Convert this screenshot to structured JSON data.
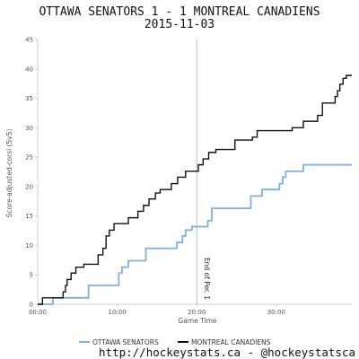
{
  "header": {
    "title": "OTTAWA SENATORS 1 - 1 MONTREAL CANADIENS",
    "date": "2015-11-03"
  },
  "footer": {
    "credit": "http://hockeystats.ca - @hockeystatsca"
  },
  "colors": {
    "ottawa": "#7fb0e0",
    "montreal": "#111111",
    "period_line": "#bdbdbd",
    "axis": "#d0d0d0"
  },
  "chart_data": {
    "type": "line",
    "xlabel": "Game Time",
    "ylabel": "Score-adjusted-corsi (5v5)",
    "x_unit": "minutes",
    "xlim": [
      0,
      39.5
    ],
    "ylim": [
      0,
      45
    ],
    "x_ticks": [
      "00:00",
      "10:00",
      "20:00",
      "30:00"
    ],
    "y_ticks": [
      "0",
      "5",
      "10",
      "15",
      "20",
      "25",
      "30",
      "35",
      "40",
      "45"
    ],
    "annotations": [
      {
        "x": 20,
        "text": "End of Per. 1"
      }
    ],
    "legend_position": "bottom",
    "series": [
      {
        "name": "OTTAWA SENATORS",
        "color": "#7fb0e0",
        "points": [
          [
            0,
            0
          ],
          [
            1.9,
            0
          ],
          [
            1.9,
            1.1
          ],
          [
            6.4,
            1.1
          ],
          [
            6.4,
            3.2
          ],
          [
            10.2,
            3.2
          ],
          [
            10.2,
            5.3
          ],
          [
            10.6,
            5.3
          ],
          [
            10.6,
            6.3
          ],
          [
            11.4,
            6.3
          ],
          [
            11.4,
            7.4
          ],
          [
            13.6,
            7.4
          ],
          [
            13.6,
            9.5
          ],
          [
            17.5,
            9.5
          ],
          [
            17.5,
            10.5
          ],
          [
            18.2,
            10.5
          ],
          [
            18.2,
            11.6
          ],
          [
            18.6,
            11.6
          ],
          [
            18.6,
            12.6
          ],
          [
            19.4,
            12.6
          ],
          [
            19.4,
            13.2
          ],
          [
            21.4,
            13.2
          ],
          [
            21.4,
            14.2
          ],
          [
            21.9,
            14.2
          ],
          [
            21.9,
            16.3
          ],
          [
            26.8,
            16.3
          ],
          [
            26.8,
            18.4
          ],
          [
            28.2,
            18.4
          ],
          [
            28.2,
            19.5
          ],
          [
            30.4,
            19.5
          ],
          [
            30.4,
            20.5
          ],
          [
            30.8,
            20.5
          ],
          [
            30.8,
            21.6
          ],
          [
            31.2,
            21.6
          ],
          [
            31.2,
            22.6
          ],
          [
            33.4,
            22.6
          ],
          [
            33.4,
            23.7
          ],
          [
            39.5,
            23.7
          ]
        ]
      },
      {
        "name": "MONTREAL CANADIENS",
        "color": "#111111",
        "points": [
          [
            0,
            0
          ],
          [
            0.6,
            0
          ],
          [
            0.6,
            1.1
          ],
          [
            3.2,
            1.1
          ],
          [
            3.2,
            2.1
          ],
          [
            3.5,
            2.1
          ],
          [
            3.5,
            3.2
          ],
          [
            3.7,
            3.2
          ],
          [
            3.7,
            4.2
          ],
          [
            4.2,
            4.2
          ],
          [
            4.2,
            5.3
          ],
          [
            4.8,
            5.3
          ],
          [
            4.8,
            6.3
          ],
          [
            5.8,
            6.3
          ],
          [
            5.8,
            6.8
          ],
          [
            7.6,
            6.8
          ],
          [
            7.6,
            8.4
          ],
          [
            8.2,
            8.4
          ],
          [
            8.2,
            9.5
          ],
          [
            8.6,
            9.5
          ],
          [
            8.6,
            11.6
          ],
          [
            9.0,
            11.6
          ],
          [
            9.0,
            12.6
          ],
          [
            9.6,
            12.6
          ],
          [
            9.6,
            13.7
          ],
          [
            11.4,
            13.7
          ],
          [
            11.4,
            14.7
          ],
          [
            12.6,
            14.7
          ],
          [
            12.6,
            15.8
          ],
          [
            13.3,
            15.8
          ],
          [
            13.3,
            16.8
          ],
          [
            14.0,
            16.8
          ],
          [
            14.0,
            17.9
          ],
          [
            14.8,
            17.9
          ],
          [
            14.8,
            18.9
          ],
          [
            15.4,
            18.9
          ],
          [
            15.4,
            19.5
          ],
          [
            16.8,
            19.5
          ],
          [
            16.8,
            20.5
          ],
          [
            17.6,
            20.5
          ],
          [
            17.6,
            21.6
          ],
          [
            18.6,
            21.6
          ],
          [
            18.6,
            22.6
          ],
          [
            20.2,
            22.6
          ],
          [
            20.2,
            23.7
          ],
          [
            20.8,
            23.7
          ],
          [
            20.8,
            24.7
          ],
          [
            21.5,
            24.7
          ],
          [
            21.5,
            25.8
          ],
          [
            22.4,
            25.8
          ],
          [
            22.4,
            26.3
          ],
          [
            24.8,
            26.3
          ],
          [
            24.8,
            27.9
          ],
          [
            27.0,
            27.9
          ],
          [
            27.0,
            28.4
          ],
          [
            27.6,
            28.4
          ],
          [
            27.6,
            29.5
          ],
          [
            32.0,
            29.5
          ],
          [
            32.0,
            30.0
          ],
          [
            33.4,
            30.0
          ],
          [
            33.4,
            31.1
          ],
          [
            35.2,
            31.1
          ],
          [
            35.2,
            32.1
          ],
          [
            35.8,
            32.1
          ],
          [
            35.8,
            34.2
          ],
          [
            37.4,
            34.2
          ],
          [
            37.4,
            35.3
          ],
          [
            37.7,
            35.3
          ],
          [
            37.7,
            36.3
          ],
          [
            38.0,
            36.3
          ],
          [
            38.0,
            37.4
          ],
          [
            38.4,
            37.4
          ],
          [
            38.4,
            38.4
          ],
          [
            38.8,
            38.4
          ],
          [
            38.8,
            38.9
          ],
          [
            39.5,
            38.9
          ]
        ]
      }
    ]
  }
}
